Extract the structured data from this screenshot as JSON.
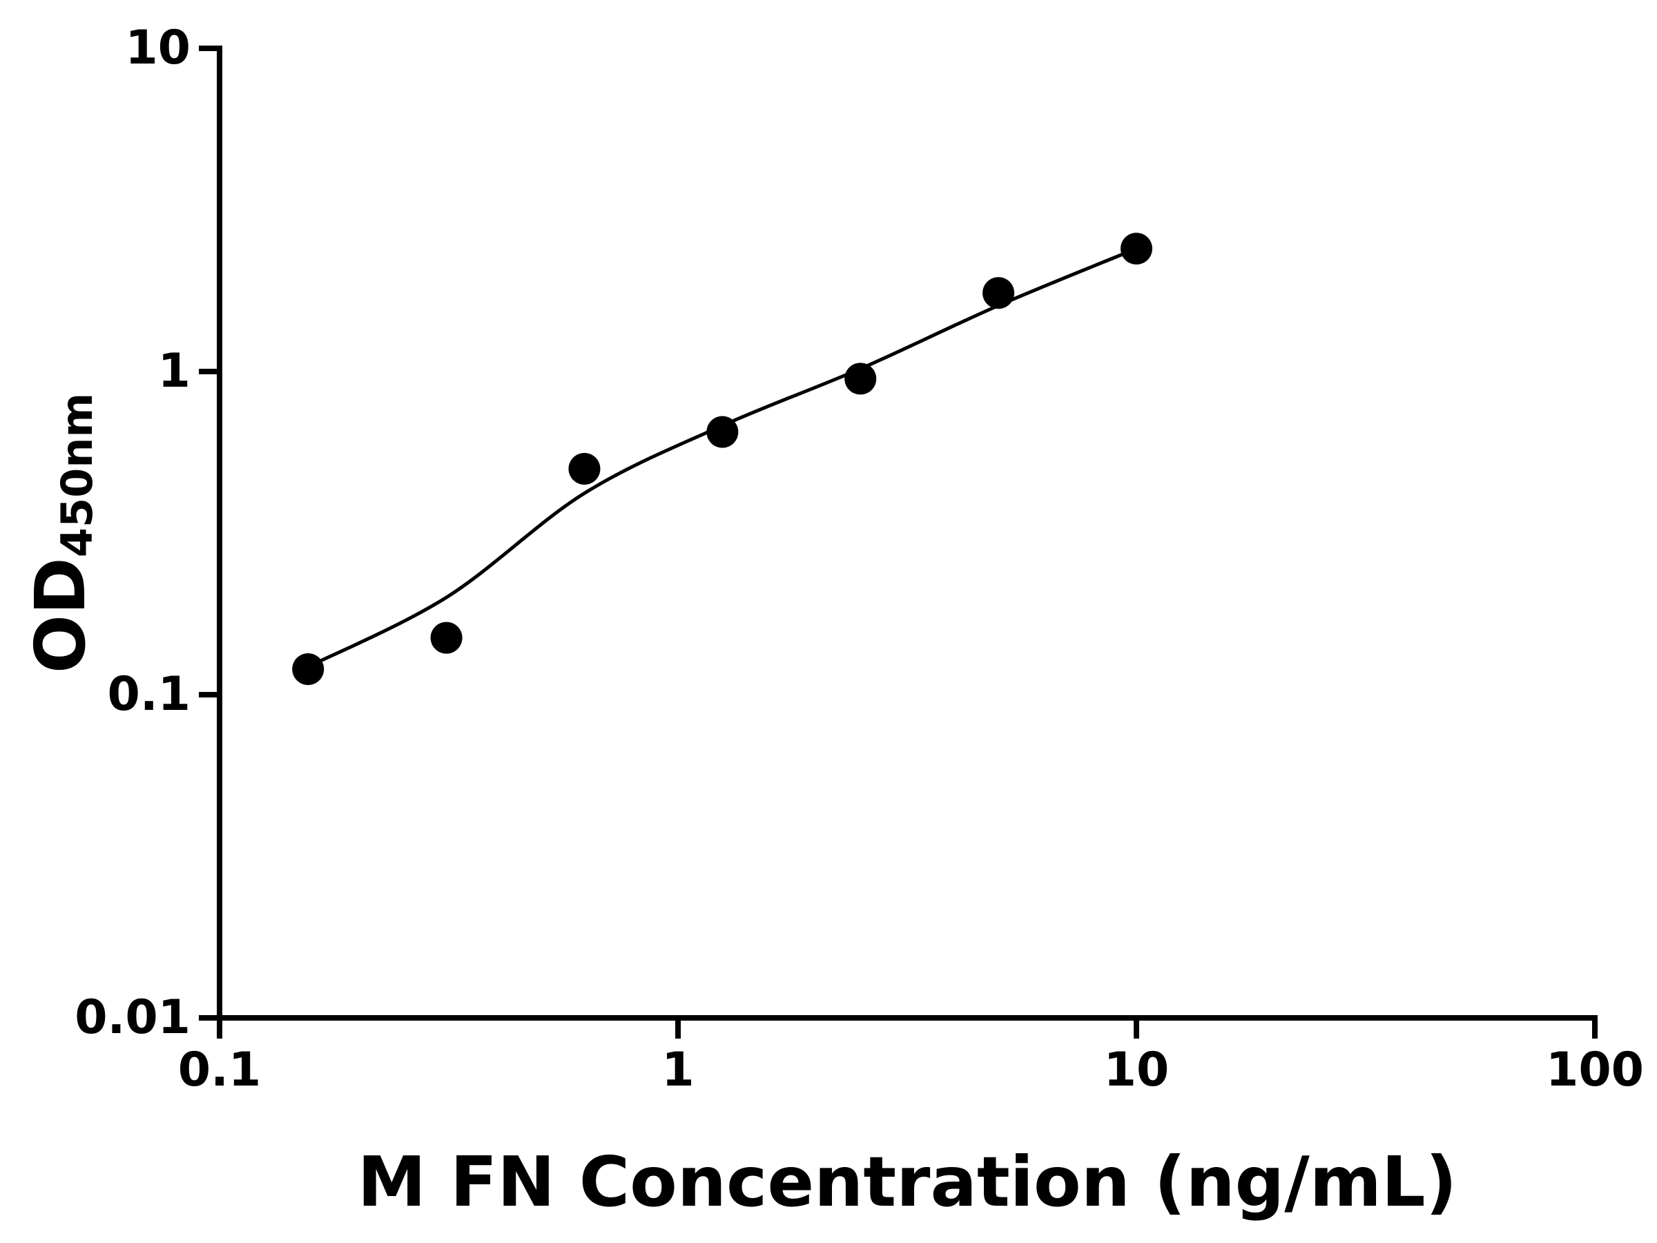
{
  "figure": {
    "background": "#ffffff",
    "axis_color": "#000000",
    "marker_color": "#000000",
    "line_color": "#000000"
  },
  "chart_data": {
    "type": "scatter",
    "title": "",
    "xlabel": "M FN Concentration (ng/mL)",
    "ylabel": "OD",
    "ylabel_subscript": "450nm",
    "x_scale": "log",
    "y_scale": "log",
    "xlim": [
      0.1,
      100
    ],
    "ylim": [
      0.01,
      10
    ],
    "x_ticks": [
      0.1,
      1,
      10,
      100
    ],
    "x_tick_labels": [
      "0.1",
      "1",
      "10",
      "100"
    ],
    "y_ticks": [
      0.01,
      0.1,
      1,
      10
    ],
    "y_tick_labels": [
      "0.01",
      "0.1",
      "1",
      "10"
    ],
    "grid": false,
    "legend": null,
    "points": [
      {
        "x": 0.156,
        "y": 0.12
      },
      {
        "x": 0.3125,
        "y": 0.15
      },
      {
        "x": 0.625,
        "y": 0.5
      },
      {
        "x": 1.25,
        "y": 0.65
      },
      {
        "x": 2.5,
        "y": 0.95
      },
      {
        "x": 5,
        "y": 1.75
      },
      {
        "x": 10,
        "y": 2.4
      }
    ],
    "fit_curve": [
      {
        "x": 0.156,
        "y": 0.122
      },
      {
        "x": 0.3125,
        "y": 0.2
      },
      {
        "x": 0.625,
        "y": 0.42
      },
      {
        "x": 1.25,
        "y": 0.68
      },
      {
        "x": 2.5,
        "y": 1.02
      },
      {
        "x": 5,
        "y": 1.6
      },
      {
        "x": 10,
        "y": 2.4
      }
    ]
  }
}
